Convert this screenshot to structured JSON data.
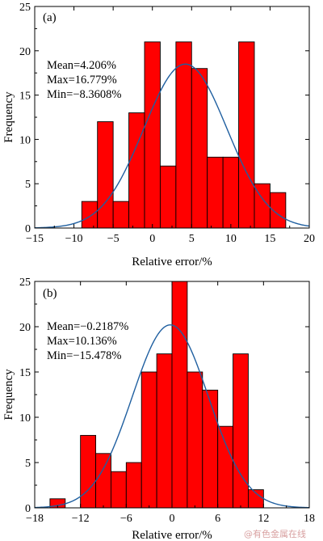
{
  "watermark": "@有色金属在线",
  "chart_data": [
    {
      "type": "bar",
      "panel_tag": "(a)",
      "xlabel": "Relative error/%",
      "ylabel": "Frequency",
      "xlim": [
        -15,
        20
      ],
      "ylim": [
        0,
        25
      ],
      "xticks": [
        -15,
        -10,
        -5,
        0,
        5,
        10,
        15,
        20
      ],
      "yticks": [
        0,
        5,
        10,
        15,
        20,
        25
      ],
      "stats": [
        "Mean=4.206%",
        "Max=16.779%",
        "Min=−8.3608%"
      ],
      "bin_width": 2,
      "bins": [
        {
          "x0": -9,
          "value": 3
        },
        {
          "x0": -7,
          "value": 12
        },
        {
          "x0": -5,
          "value": 3
        },
        {
          "x0": -3,
          "value": 13
        },
        {
          "x0": -1,
          "value": 21
        },
        {
          "x0": 1,
          "value": 7
        },
        {
          "x0": 3,
          "value": 21
        },
        {
          "x0": 5,
          "value": 18
        },
        {
          "x0": 7,
          "value": 8
        },
        {
          "x0": 9,
          "value": 8
        },
        {
          "x0": 11,
          "value": 21
        },
        {
          "x0": 13,
          "value": 5
        },
        {
          "x0": 15,
          "value": 4
        }
      ],
      "fit": {
        "type": "normal",
        "mean": 4.206,
        "sd": 5.3,
        "peak": 18.5
      },
      "colors": {
        "bar": "#ff0000",
        "bar_edge": "#000000",
        "fit": "#1f5fa0"
      }
    },
    {
      "type": "bar",
      "panel_tag": "(b)",
      "xlabel": "Relative error/%",
      "ylabel": "Frequency",
      "xlim": [
        -18,
        18
      ],
      "ylim": [
        0,
        25
      ],
      "xticks": [
        -18,
        -12,
        -6,
        0,
        6,
        12,
        18
      ],
      "yticks": [
        0,
        5,
        10,
        15,
        20,
        25
      ],
      "stats": [
        "Mean=−0.2187%",
        "Max=10.136%",
        "Min=−15.478%"
      ],
      "bin_width": 2,
      "bins": [
        {
          "x0": -16,
          "value": 1
        },
        {
          "x0": -14,
          "value": 0
        },
        {
          "x0": -12,
          "value": 8
        },
        {
          "x0": -10,
          "value": 6
        },
        {
          "x0": -8,
          "value": 4
        },
        {
          "x0": -6,
          "value": 5
        },
        {
          "x0": -4,
          "value": 15
        },
        {
          "x0": -2,
          "value": 17
        },
        {
          "x0": 0,
          "value": 25
        },
        {
          "x0": 2,
          "value": 15
        },
        {
          "x0": 4,
          "value": 13
        },
        {
          "x0": 6,
          "value": 9
        },
        {
          "x0": 8,
          "value": 17
        },
        {
          "x0": 10,
          "value": 2
        }
      ],
      "fit": {
        "type": "normal",
        "mean": -0.2187,
        "sd": 5.0,
        "peak": 20.2
      },
      "colors": {
        "bar": "#ff0000",
        "bar_edge": "#000000",
        "fit": "#1f5fa0"
      }
    }
  ]
}
